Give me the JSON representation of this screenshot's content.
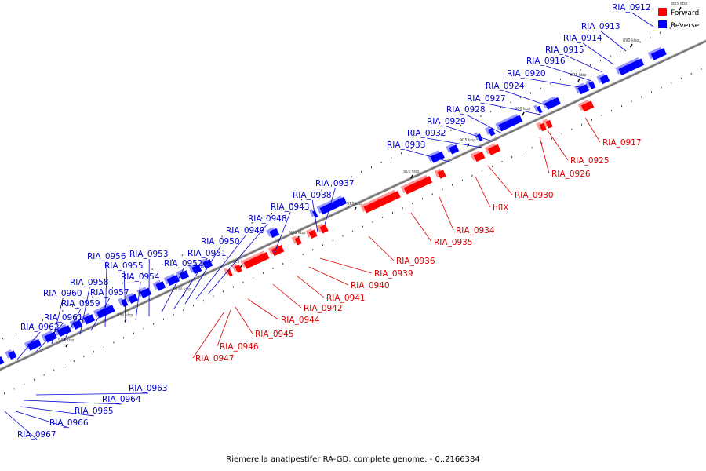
{
  "caption": "Riemerella anatipestifer RA-GD, complete genome. - 0..2166384",
  "legend": [
    {
      "label": "Forward",
      "color": "#ff0000"
    },
    {
      "label": "Reverse",
      "color": "#0000ff"
    }
  ],
  "colors": {
    "forward": "#ff0000",
    "reverse": "#0000ff",
    "axis": "#888888",
    "tick": "#000000"
  },
  "ticks": [
    "885 kbp",
    "890 kbp",
    "895 kbp",
    "900 kbp",
    "905 kbp",
    "910 kbp",
    "915 kbp",
    "920 kbp",
    "925 kbp",
    "930 kbp",
    "935 kbp",
    "940 kbp"
  ],
  "reverse_labels": [
    "RIA_0912",
    "RIA_0913",
    "RIA_0914",
    "RIA_0915",
    "RIA_0916",
    "RIA_0920",
    "RIA_0924",
    "RIA_0927",
    "RIA_0928",
    "RIA_0929",
    "RIA_0932",
    "RIA_0933",
    "RIA_0937",
    "RIA_0938",
    "RIA_0943",
    "RIA_0948",
    "RIA_0949",
    "RIA_0950",
    "RIA_0951",
    "RIA_0952",
    "RIA_0953",
    "RIA_0954",
    "RIA_0955",
    "RIA_0956",
    "RIA_0957",
    "RIA_0958",
    "RIA_0959",
    "RIA_0960",
    "RIA_0961",
    "RIA_0962",
    "RIA_0963",
    "RIA_0964",
    "RIA_0965",
    "RIA_0966",
    "RIA_0967"
  ],
  "forward_labels": [
    "RIA_0917",
    "RIA_0925",
    "RIA_0926",
    "RIA_0930",
    "hflX",
    "RIA_0934",
    "RIA_0935",
    "RIA_0936",
    "RIA_0939",
    "RIA_0940",
    "RIA_0941",
    "RIA_0942",
    "RIA_0944",
    "RIA_0945",
    "RIA_0946",
    "RIA_0947"
  ]
}
